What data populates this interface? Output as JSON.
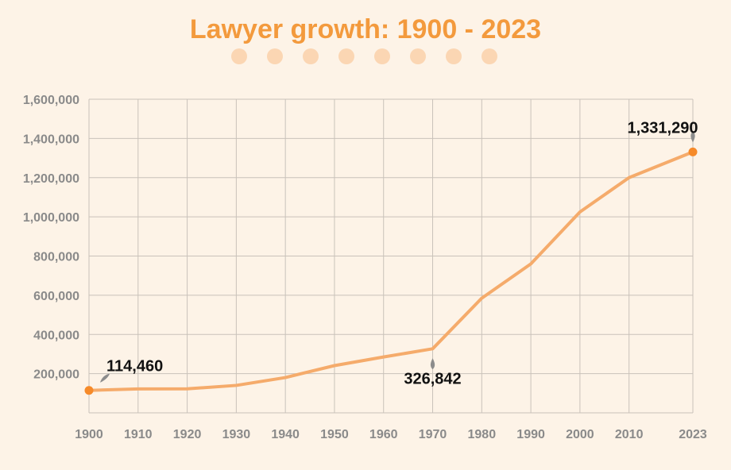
{
  "chart_data": {
    "type": "line",
    "title": "Lawyer growth: 1900 - 2023",
    "x_tick_labels": [
      "1900",
      "1910",
      "1920",
      "1930",
      "1940",
      "1950",
      "1960",
      "1970",
      "1980",
      "1990",
      "2000",
      "2010",
      "2023"
    ],
    "y_tick_labels": [
      "200,000",
      "400,000",
      "600,000",
      "800,000",
      "1,000,000",
      "1,200,000",
      "1,400,000",
      "1,600,000"
    ],
    "y_ticks": [
      200000,
      400000,
      600000,
      800000,
      1000000,
      1200000,
      1400000,
      1600000
    ],
    "ylim": [
      0,
      1600000
    ],
    "grid": true,
    "legend": "none",
    "series": [
      {
        "x": [
          1900,
          1910,
          1920,
          1930,
          1940,
          1950,
          1960,
          1970,
          1980,
          1990,
          2000,
          2010,
          2023
        ],
        "values": [
          114460,
          122000,
          122500,
          140000,
          180000,
          241000,
          285000,
          326842,
          585000,
          760000,
          1025000,
          1200000,
          1331290
        ]
      }
    ],
    "annotations": [
      {
        "text": "114,460",
        "x": 1900,
        "value": 114460,
        "position": "above"
      },
      {
        "text": "326,842",
        "x": 1970,
        "value": 326842,
        "position": "below"
      },
      {
        "text": "1,331,290",
        "x": 2023,
        "value": 1331290,
        "position": "above"
      }
    ],
    "colors": {
      "line": "#f5ab6b",
      "marker": "#f68a29",
      "title": "#f39a3d",
      "dots": "#fbd6b3",
      "grid": "#c9c2ba",
      "tick_text": "#8a8a8a",
      "background": "#fdf3e7"
    },
    "decorative_dot_count": 8
  }
}
